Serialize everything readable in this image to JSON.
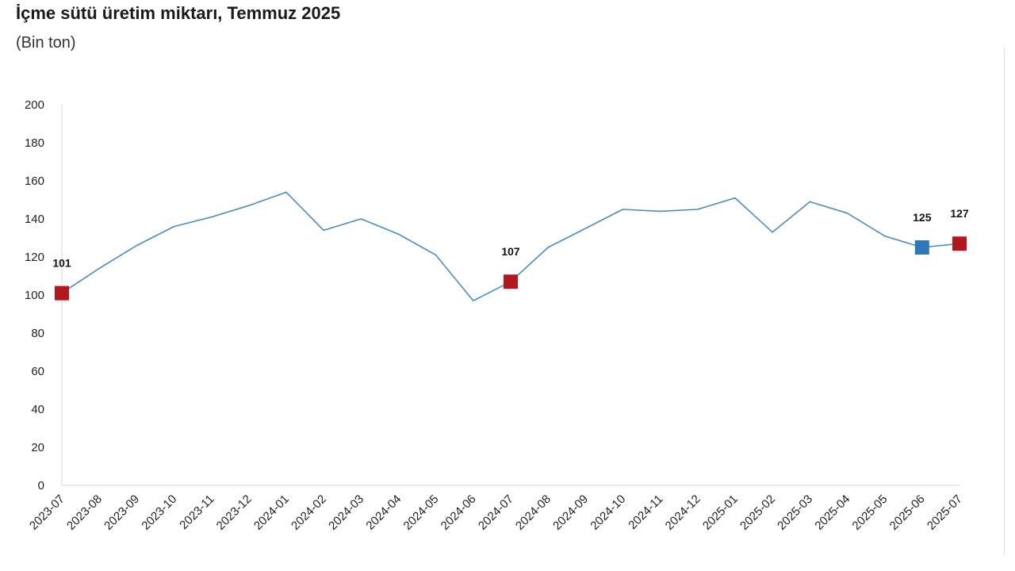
{
  "chart_data": {
    "type": "line",
    "title": "İçme sütü üretim miktarı, Temmuz 2025",
    "subtitle": "(Bin ton)",
    "xlabel": "",
    "ylabel": "",
    "ylim": [
      0,
      200
    ],
    "yticks": [
      0,
      20,
      40,
      60,
      80,
      100,
      120,
      140,
      160,
      180,
      200
    ],
    "categories": [
      "2023-07",
      "2023-08",
      "2023-09",
      "2023-10",
      "2023-11",
      "2023-12",
      "2024-01",
      "2024-02",
      "2024-03",
      "2024-04",
      "2024-05",
      "2024-06",
      "2024-07",
      "2024-08",
      "2024-09",
      "2024-10",
      "2024-11",
      "2024-12",
      "2025-01",
      "2025-02",
      "2025-03",
      "2025-04",
      "2025-05",
      "2025-06",
      "2025-07"
    ],
    "series": [
      {
        "values": [
          101,
          114,
          126,
          136,
          141,
          147,
          154,
          134,
          140,
          132,
          121,
          97,
          107,
          125,
          135,
          145,
          144,
          145,
          151,
          133,
          149,
          143,
          131,
          125,
          127
        ],
        "color": "#4a8cc2"
      }
    ],
    "highlights": [
      {
        "index": 0,
        "label": "101",
        "color": "#b0181e"
      },
      {
        "index": 12,
        "label": "107",
        "color": "#b0181e"
      },
      {
        "index": 23,
        "label": "125",
        "color": "#2e78b7"
      },
      {
        "index": 24,
        "label": "127",
        "color": "#b0181e"
      }
    ],
    "grid": false,
    "legend": "none"
  }
}
